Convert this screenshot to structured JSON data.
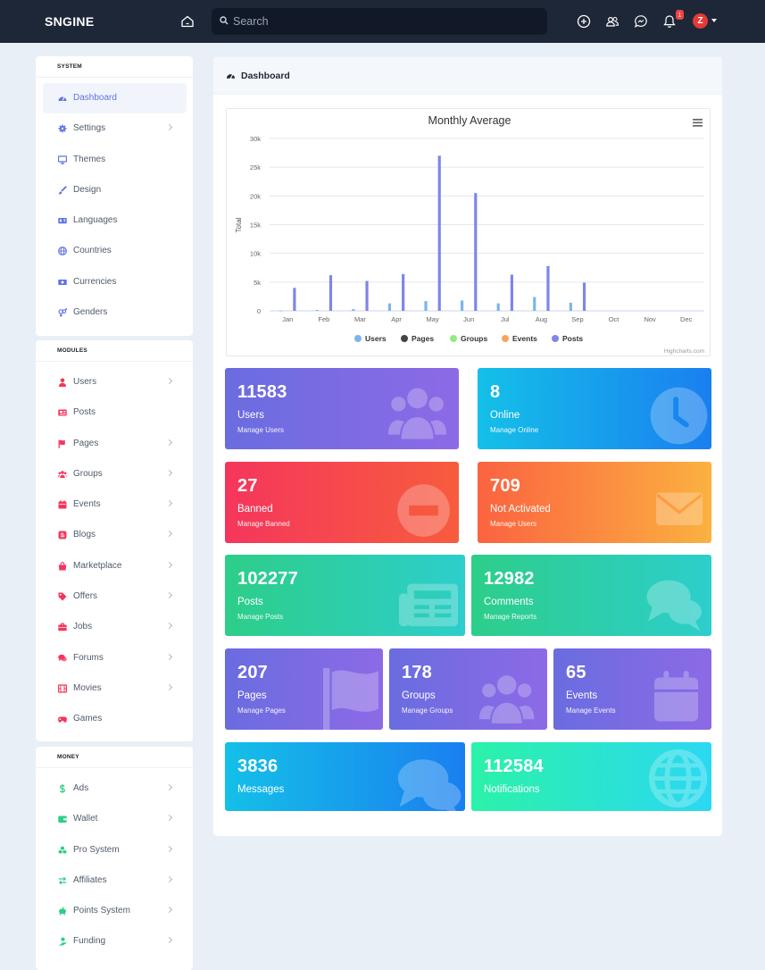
{
  "brand": "SNGINE",
  "search": {
    "placeholder": "Search"
  },
  "notifications_badge": "1",
  "avatar_letter": "Z",
  "sidebar": {
    "system": {
      "heading": "SYSTEM",
      "items": [
        {
          "label": "Dashboard",
          "icon": "dashboard-icon",
          "active": true,
          "chevron": false
        },
        {
          "label": "Settings",
          "icon": "gear-icon",
          "chevron": true
        },
        {
          "label": "Themes",
          "icon": "desktop-icon",
          "chevron": false
        },
        {
          "label": "Design",
          "icon": "brush-icon",
          "chevron": false
        },
        {
          "label": "Languages",
          "icon": "language-icon",
          "chevron": false
        },
        {
          "label": "Countries",
          "icon": "globe-icon",
          "chevron": false
        },
        {
          "label": "Currencies",
          "icon": "money-icon",
          "chevron": false
        },
        {
          "label": "Genders",
          "icon": "gender-icon",
          "chevron": false
        }
      ]
    },
    "modules": {
      "heading": "MODULES",
      "items": [
        {
          "label": "Users",
          "icon": "user-icon",
          "chevron": true
        },
        {
          "label": "Posts",
          "icon": "newspaper-icon",
          "chevron": false
        },
        {
          "label": "Pages",
          "icon": "flag-icon",
          "chevron": true
        },
        {
          "label": "Groups",
          "icon": "users-icon",
          "chevron": true
        },
        {
          "label": "Events",
          "icon": "calendar-icon",
          "chevron": true
        },
        {
          "label": "Blogs",
          "icon": "blog-icon",
          "chevron": true
        },
        {
          "label": "Marketplace",
          "icon": "shopping-bag-icon",
          "chevron": true
        },
        {
          "label": "Offers",
          "icon": "tag-icon",
          "chevron": true
        },
        {
          "label": "Jobs",
          "icon": "briefcase-icon",
          "chevron": true
        },
        {
          "label": "Forums",
          "icon": "comments-icon",
          "chevron": true
        },
        {
          "label": "Movies",
          "icon": "film-icon",
          "chevron": true
        },
        {
          "label": "Games",
          "icon": "gamepad-icon",
          "chevron": false
        }
      ]
    },
    "money": {
      "heading": "MONEY",
      "items": [
        {
          "label": "Ads",
          "icon": "dollar-icon",
          "chevron": true
        },
        {
          "label": "Wallet",
          "icon": "wallet-icon",
          "chevron": true
        },
        {
          "label": "Pro System",
          "icon": "cubes-icon",
          "chevron": true
        },
        {
          "label": "Affiliates",
          "icon": "exchange-icon",
          "chevron": true
        },
        {
          "label": "Points System",
          "icon": "piggy-bank-icon",
          "chevron": true
        },
        {
          "label": "Funding",
          "icon": "hand-holding-dollar-icon",
          "chevron": true
        }
      ]
    }
  },
  "main": {
    "title": "Dashboard"
  },
  "chart_data": {
    "type": "bar",
    "title": "Monthly Average",
    "ylabel": "Total",
    "xlabel": "",
    "categories": [
      "Jan",
      "Feb",
      "Mar",
      "Apr",
      "May",
      "Jun",
      "Jul",
      "Aug",
      "Sep",
      "Oct",
      "Nov",
      "Dec"
    ],
    "ylim": [
      0,
      30000
    ],
    "yticks": [
      "0",
      "5k",
      "10k",
      "15k",
      "20k",
      "25k",
      "30k"
    ],
    "credit": "Highcharts.com",
    "series": [
      {
        "name": "Users",
        "color": "#7cb5ec",
        "values": [
          50,
          150,
          300,
          1300,
          1700,
          1800,
          1300,
          2400,
          1400,
          0,
          0,
          0
        ]
      },
      {
        "name": "Pages",
        "color": "#434348",
        "values": [
          0,
          0,
          0,
          0,
          0,
          0,
          0,
          0,
          0,
          0,
          0,
          0
        ]
      },
      {
        "name": "Groups",
        "color": "#90ed7d",
        "values": [
          0,
          0,
          0,
          0,
          0,
          0,
          0,
          0,
          0,
          0,
          0,
          0
        ]
      },
      {
        "name": "Events",
        "color": "#f7a35c",
        "values": [
          0,
          0,
          0,
          0,
          0,
          0,
          0,
          0,
          0,
          0,
          0,
          0
        ]
      },
      {
        "name": "Posts",
        "color": "#8085e9",
        "values": [
          4000,
          6200,
          5200,
          6400,
          27000,
          20500,
          6300,
          7800,
          4900,
          0,
          0,
          0
        ]
      }
    ]
  },
  "stats": [
    {
      "value": "11583",
      "label": "Users",
      "sub": "Manage Users",
      "icon": "users-icon"
    },
    {
      "value": "8",
      "label": "Online",
      "sub": "Manage Online",
      "icon": "clock-icon"
    },
    {
      "value": "27",
      "label": "Banned",
      "sub": "Manage Banned",
      "icon": "minus-circle-icon"
    },
    {
      "value": "709",
      "label": "Not Activated",
      "sub": "Manage Users",
      "icon": "envelope-icon"
    },
    {
      "value": "102277",
      "label": "Posts",
      "sub": "Manage Posts",
      "icon": "newspaper-icon"
    },
    {
      "value": "12982",
      "label": "Comments",
      "sub": "Manage Reports",
      "icon": "comments-icon"
    },
    {
      "value": "207",
      "label": "Pages",
      "sub": "Manage Pages",
      "icon": "flag-icon"
    },
    {
      "value": "178",
      "label": "Groups",
      "sub": "Manage Groups",
      "icon": "users-icon"
    },
    {
      "value": "65",
      "label": "Events",
      "sub": "Manage Events",
      "icon": "calendar-icon"
    },
    {
      "value": "3836",
      "label": "Messages",
      "sub": "",
      "icon": "comments-icon"
    },
    {
      "value": "112584",
      "label": "Notifications",
      "sub": "",
      "icon": "globe-icon"
    }
  ]
}
